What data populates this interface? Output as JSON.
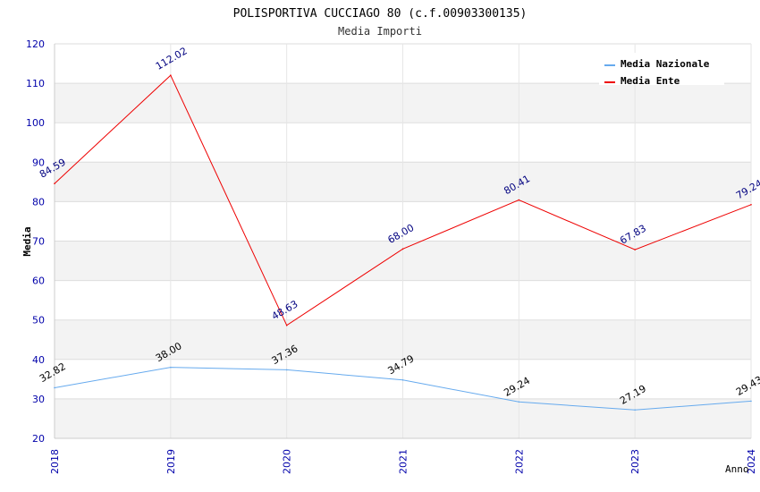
{
  "chart_data": {
    "type": "line",
    "title": "POLISPORTIVA CUCCIAGO 80 (c.f.00903300135)",
    "subtitle": "Media Importi",
    "xlabel": "Anno",
    "ylabel": "Media",
    "categories": [
      "2018",
      "2019",
      "2020",
      "2021",
      "2022",
      "2023",
      "2024"
    ],
    "ylim": [
      20,
      120
    ],
    "yticks": [
      "20",
      "30",
      "40",
      "50",
      "60",
      "70",
      "80",
      "90",
      "100",
      "110",
      "120"
    ],
    "grid": true,
    "legend_position": "top-right",
    "series": [
      {
        "name": "Media Nazionale",
        "color": "#66aaee",
        "label_color": "#000000",
        "values": [
          32.82,
          38.0,
          37.36,
          34.79,
          29.24,
          27.19,
          29.43
        ],
        "labels": [
          "32.82",
          "38.00",
          "37.36",
          "34.79",
          "29.24",
          "27.19",
          "29.43"
        ]
      },
      {
        "name": "Media Ente",
        "color": "#ee0000",
        "label_color": "#000080",
        "values": [
          84.59,
          112.02,
          48.63,
          68.0,
          80.41,
          67.83,
          79.24
        ],
        "labels": [
          "84.59",
          "112.02",
          "48.63",
          "68.00",
          "80.41",
          "67.83",
          "79.24"
        ]
      }
    ]
  }
}
